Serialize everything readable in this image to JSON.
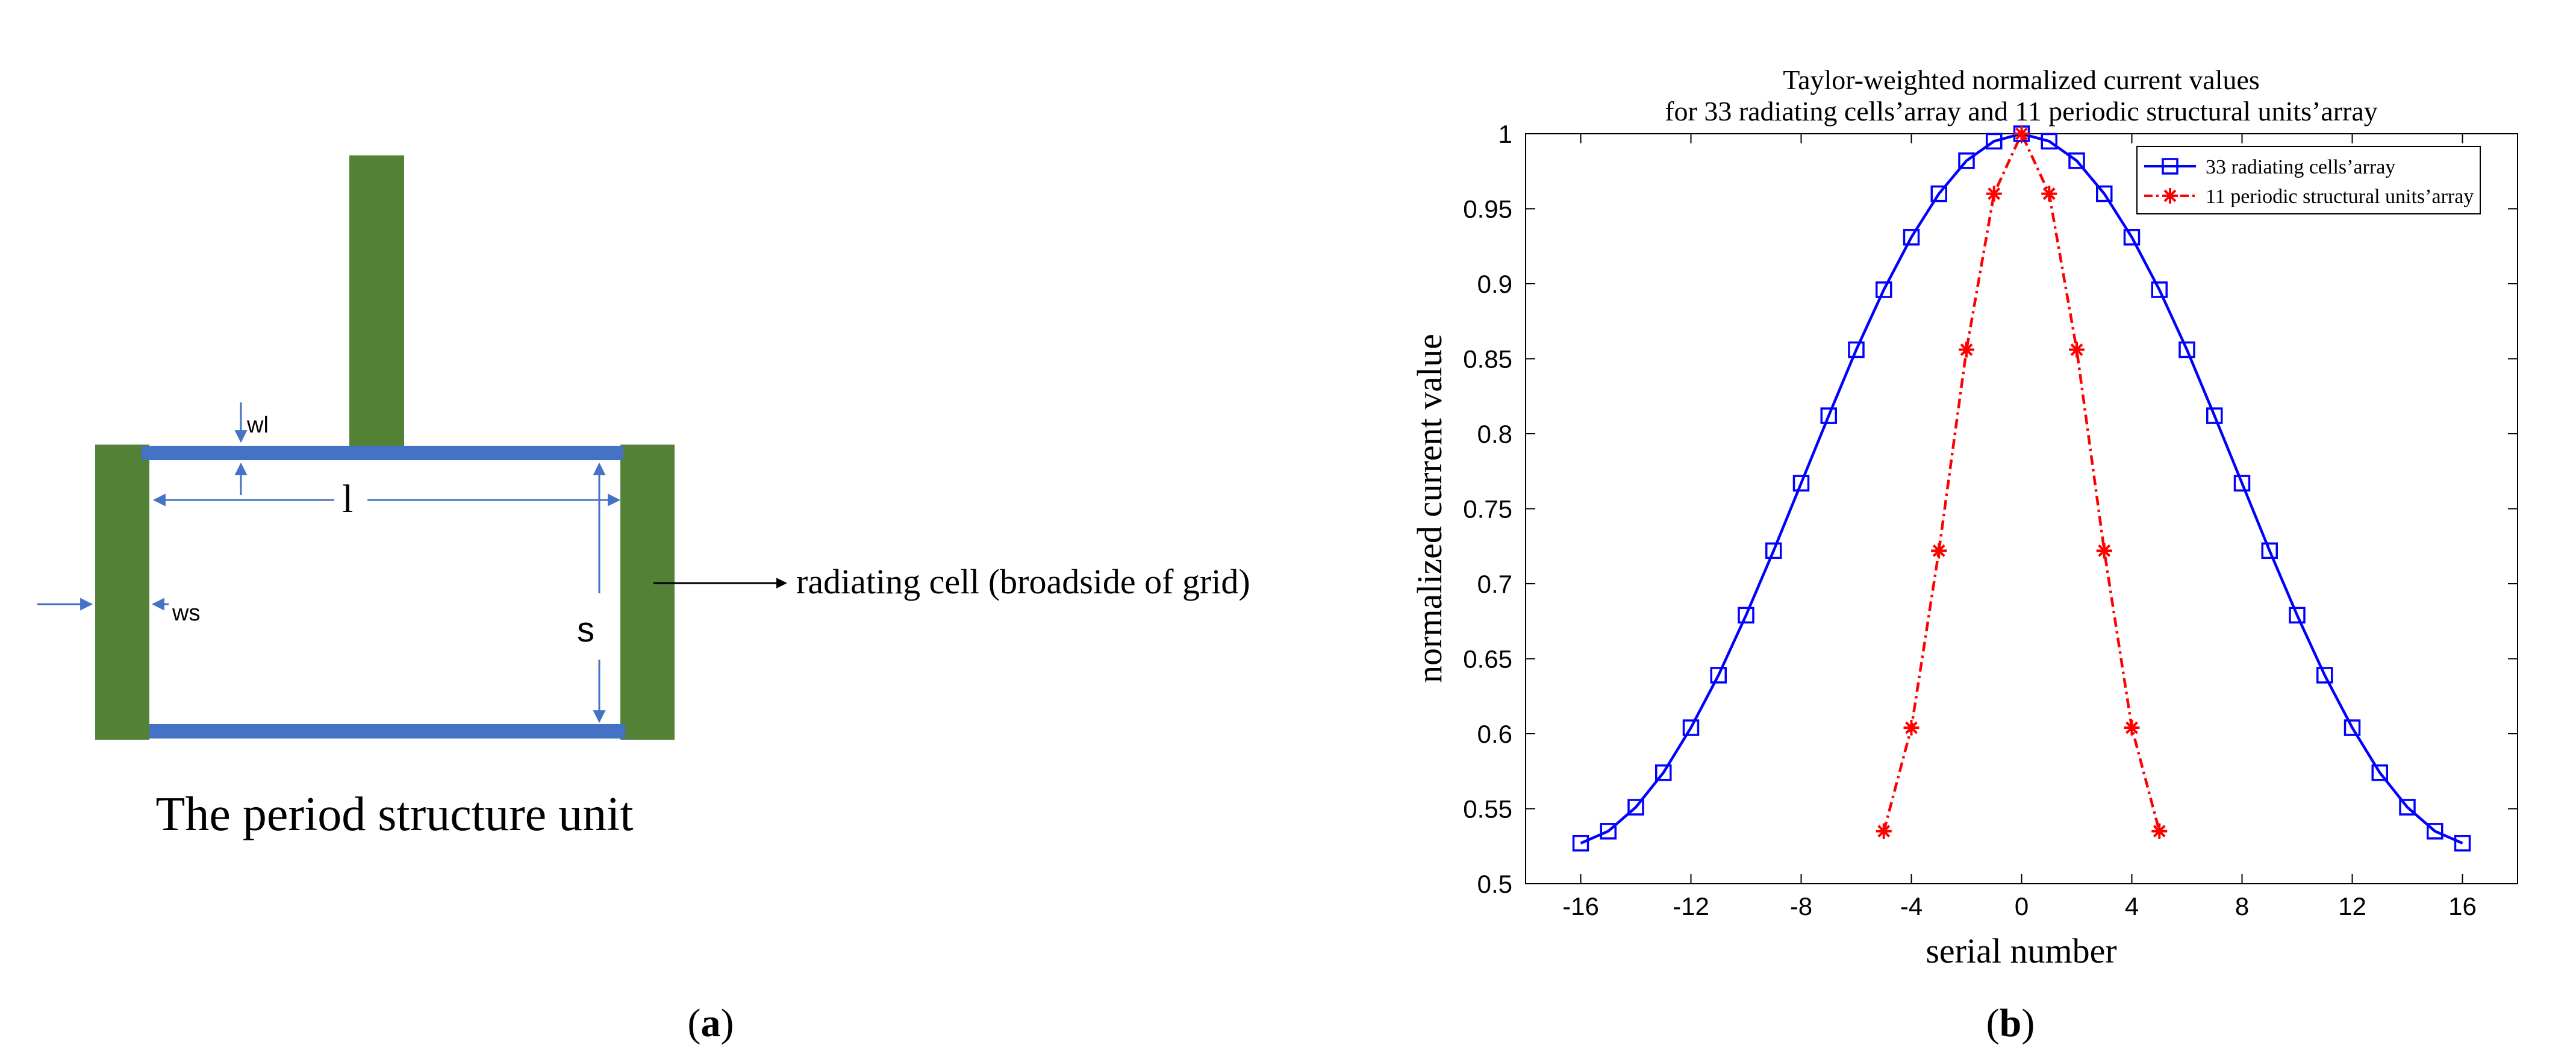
{
  "panel_a": {
    "caption": "The period structure unit",
    "label_wl": "wl",
    "label_l": "l",
    "label_ws": "ws",
    "label_s": "s",
    "annotation": "radiating cell (broadside of grid)",
    "panel_letter": "a",
    "colors": {
      "green": "#538135",
      "blue": "#4472C4"
    }
  },
  "panel_b": {
    "panel_letter": "b"
  },
  "chart_data": {
    "type": "line",
    "title_line1": "Taylor-weighted normalized current values",
    "title_line2": "for 33 radiating cells’array and 11 periodic structural units’array",
    "xlabel": "serial number",
    "ylabel": "normalized current value",
    "xlim": [
      -18,
      18
    ],
    "ylim": [
      0.5,
      1.0
    ],
    "xticks": [
      -16,
      -12,
      -8,
      -4,
      0,
      4,
      8,
      12,
      16
    ],
    "xtick_labels": [
      "-16",
      "-12",
      "-8",
      "-4",
      "0",
      "4",
      "8",
      "12",
      "16"
    ],
    "yticks": [
      0.5,
      0.55,
      0.6,
      0.65,
      0.7,
      0.75,
      0.8,
      0.85,
      0.9,
      0.95,
      1.0
    ],
    "ytick_labels": [
      "0.5",
      "0.55",
      "0.6",
      "0.65",
      "0.7",
      "0.75",
      "0.8",
      "0.85",
      "0.9",
      "0.95",
      "1"
    ],
    "legend_position": "top-right",
    "series": [
      {
        "name": "33 radiating cells’array",
        "color": "#0000FF",
        "marker": "square",
        "line_style": "solid",
        "x": [
          -16,
          -15,
          -14,
          -13,
          -12,
          -11,
          -10,
          -9,
          -8,
          -7,
          -6,
          -5,
          -4,
          -3,
          -2,
          -1,
          0,
          1,
          2,
          3,
          4,
          5,
          6,
          7,
          8,
          9,
          10,
          11,
          12,
          13,
          14,
          15,
          16
        ],
        "values": [
          0.527,
          0.535,
          0.551,
          0.574,
          0.604,
          0.639,
          0.679,
          0.722,
          0.767,
          0.812,
          0.856,
          0.896,
          0.931,
          0.96,
          0.982,
          0.995,
          1.0,
          0.995,
          0.982,
          0.96,
          0.931,
          0.896,
          0.856,
          0.812,
          0.767,
          0.722,
          0.679,
          0.639,
          0.604,
          0.574,
          0.551,
          0.535,
          0.527
        ]
      },
      {
        "name": "11 periodic structural units’array",
        "color": "#FF0000",
        "marker": "asterisk",
        "line_style": "dash-dot",
        "x": [
          -5,
          -4,
          -3,
          -2,
          -1,
          0,
          1,
          2,
          3,
          4,
          5
        ],
        "values": [
          0.535,
          0.604,
          0.722,
          0.856,
          0.96,
          1.0,
          0.96,
          0.856,
          0.722,
          0.604,
          0.535
        ]
      }
    ]
  }
}
